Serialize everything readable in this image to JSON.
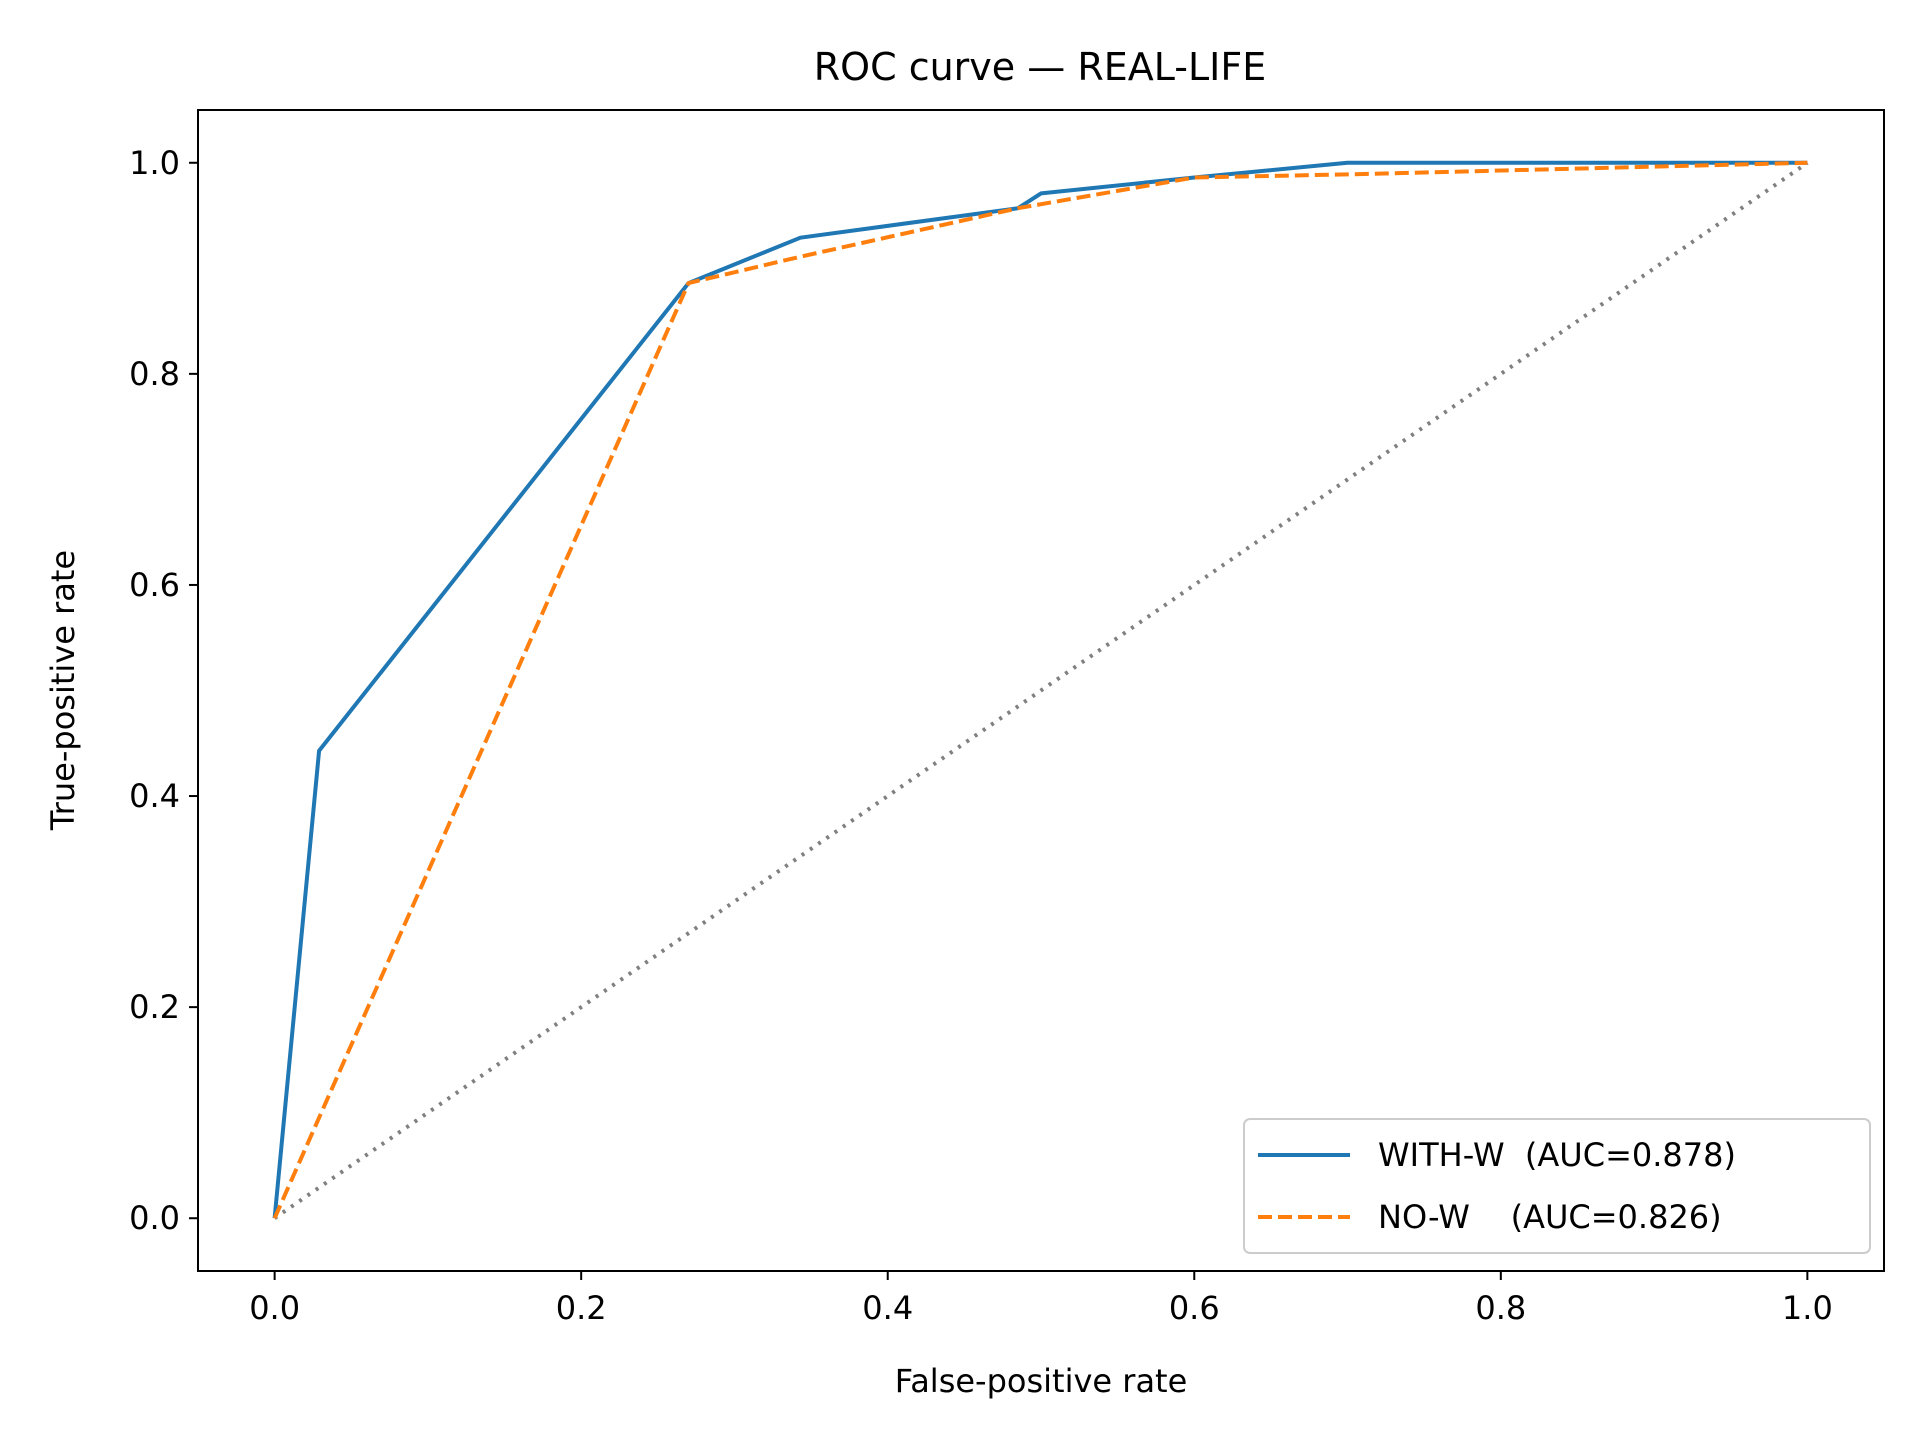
{
  "chart_data": {
    "type": "line",
    "title": "ROC curve — REAL-LIFE",
    "xlabel": "False-positive rate",
    "ylabel": "True-positive rate",
    "xlim": [
      -0.05,
      1.05
    ],
    "ylim": [
      -0.05,
      1.05
    ],
    "xticks": [
      0.0,
      0.2,
      0.4,
      0.6,
      0.8,
      1.0
    ],
    "yticks": [
      0.0,
      0.2,
      0.4,
      0.6,
      0.8,
      1.0
    ],
    "tick_format": "0.1f",
    "grid": false,
    "legend_position": "lower-right",
    "series": [
      {
        "name": "WITH-W  (AUC=0.878)",
        "color": "#1f77b4",
        "style": "solid",
        "x": [
          0.0,
          0.029,
          0.27,
          0.343,
          0.485,
          0.5,
          0.6,
          0.7,
          0.8,
          1.0
        ],
        "y": [
          0.0,
          0.443,
          0.886,
          0.929,
          0.957,
          0.971,
          0.986,
          1.0,
          1.0,
          1.0
        ]
      },
      {
        "name": "NO-W    (AUC=0.826)",
        "color": "#ff7f0e",
        "style": "dashed",
        "x": [
          0.0,
          0.27,
          0.343,
          0.485,
          0.6,
          0.7,
          1.0
        ],
        "y": [
          0.0,
          0.886,
          0.911,
          0.957,
          0.986,
          0.989,
          1.0
        ]
      }
    ],
    "reference_line": {
      "color": "#808080",
      "style": "dotted",
      "x": [
        0.0,
        1.0
      ],
      "y": [
        0.0,
        1.0
      ]
    }
  }
}
